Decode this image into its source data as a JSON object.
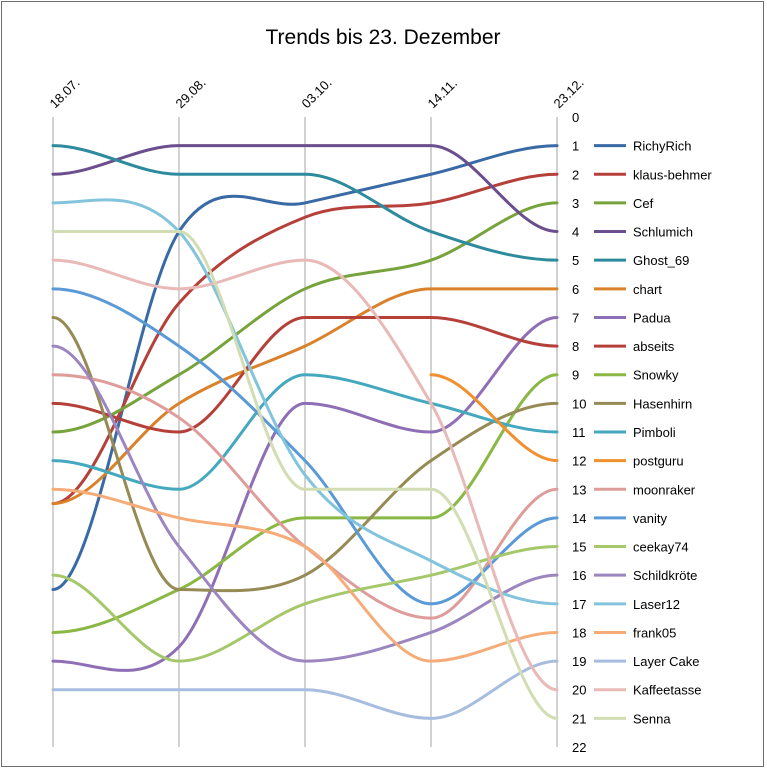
{
  "chart_data": {
    "type": "line",
    "title": "Trends bis 23. Dezember",
    "categories": [
      "18.07.",
      "29.08.",
      "03.10.",
      "14.11.",
      "23.12."
    ],
    "y_ticks": [
      "0",
      "1",
      "2",
      "3",
      "4",
      "5",
      "6",
      "7",
      "8",
      "9",
      "10",
      "11",
      "12",
      "13",
      "14",
      "15",
      "16",
      "17",
      "18",
      "19",
      "20",
      "21",
      "22"
    ],
    "ylim": [
      0,
      22
    ],
    "y_inverted": true,
    "smooth": true,
    "grid": "vertical",
    "legend_position": "right",
    "series": [
      {
        "name": "RichyRich",
        "color": "#3a6aa5",
        "values": [
          16.5,
          4,
          3,
          2,
          1
        ]
      },
      {
        "name": "klaus-behmer",
        "color": "#b5403a",
        "values": [
          13.5,
          6.5,
          3.5,
          3,
          2
        ]
      },
      {
        "name": "Cef",
        "color": "#77a33d",
        "values": [
          11,
          9,
          6,
          5,
          3
        ]
      },
      {
        "name": "Schlumich",
        "color": "#6b4e8d",
        "values": [
          2,
          1,
          1,
          1,
          4
        ]
      },
      {
        "name": "Ghost_69",
        "color": "#2e8b9e",
        "values": [
          1,
          2,
          2,
          4,
          5
        ]
      },
      {
        "name": "chart",
        "color": "#d9822b",
        "values": [
          13.5,
          10,
          8,
          6,
          6
        ]
      },
      {
        "name": "Padua",
        "color": "#8e6fb5",
        "values": [
          19,
          18.5,
          10,
          11,
          7
        ]
      },
      {
        "name": "abseits",
        "color": "#b5403a",
        "values": [
          10,
          11,
          7,
          7,
          8
        ]
      },
      {
        "name": "Snowky",
        "color": "#8ab845",
        "values": [
          18,
          16.5,
          14,
          14,
          9
        ]
      },
      {
        "name": "Hasenhirn",
        "color": "#968a55",
        "values": [
          7,
          16.5,
          16,
          12,
          10
        ]
      },
      {
        "name": "Pimboli",
        "color": "#44a9bf",
        "values": [
          12,
          13,
          9,
          10,
          11
        ]
      },
      {
        "name": "postguru",
        "color": "#f0902f",
        "values": [
          null,
          null,
          null,
          9,
          12
        ]
      },
      {
        "name": "moonraker",
        "color": "#de9d9b",
        "values": [
          9,
          10.5,
          15,
          17.5,
          13
        ]
      },
      {
        "name": "vanity",
        "color": "#5a9ad6",
        "values": [
          6,
          8,
          12,
          17,
          14
        ]
      },
      {
        "name": "ceekay74",
        "color": "#a5c86a",
        "values": [
          16,
          19,
          17,
          16,
          15
        ]
      },
      {
        "name": "Schildkröte",
        "color": "#9c86c0",
        "values": [
          8,
          15,
          19,
          18,
          16
        ]
      },
      {
        "name": "Laser12",
        "color": "#83c4dc",
        "values": [
          3,
          4,
          12.5,
          15.5,
          17
        ]
      },
      {
        "name": "frank05",
        "color": "#f6ac78",
        "values": [
          13,
          14,
          15,
          19,
          18
        ]
      },
      {
        "name": "Layer Cake",
        "color": "#a7bde0",
        "values": [
          20,
          20,
          20,
          21,
          19
        ]
      },
      {
        "name": "Kaffeetasse",
        "color": "#e8b9b7",
        "values": [
          5,
          6,
          5,
          10,
          20
        ]
      },
      {
        "name": "Senna",
        "color": "#d2ddb3",
        "values": [
          4,
          4,
          13,
          13,
          21
        ]
      }
    ]
  }
}
